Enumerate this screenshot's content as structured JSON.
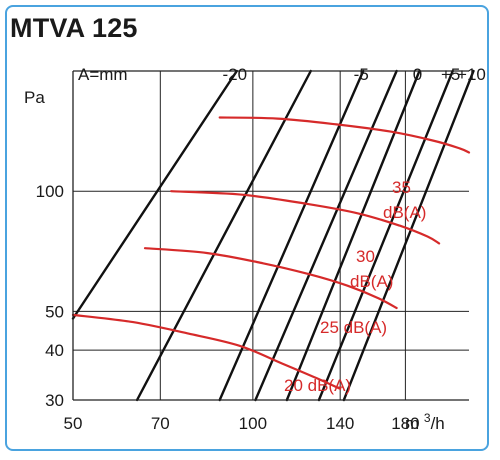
{
  "title": "MTVA 125",
  "chart_data": {
    "type": "line",
    "title": "MTVA 125",
    "xlabel": "m3/h",
    "ylabel": "Pa",
    "x_scale": "log",
    "y_scale": "log",
    "xlim": [
      50,
      230
    ],
    "ylim": [
      30,
      200
    ],
    "grid": true,
    "x_ticks": [
      {
        "label": "50",
        "value": 50
      },
      {
        "label": "70",
        "value": 70
      },
      {
        "label": "100",
        "value": 100
      },
      {
        "label": "140",
        "value": 140
      },
      {
        "label": "180",
        "value": 180
      }
    ],
    "y_ticks": [
      {
        "label": "30",
        "value": 30
      },
      {
        "label": "40",
        "value": 40
      },
      {
        "label": "50",
        "value": 50
      },
      {
        "label": "100",
        "value": 100
      }
    ],
    "damper_prefix": "A=mm",
    "damper_lines": [
      {
        "label": "-20",
        "points": [
          [
            50,
            48
          ],
          [
            94,
            200
          ]
        ]
      },
      {
        "label": "",
        "points": [
          [
            64,
            30
          ],
          [
            125,
            200
          ]
        ]
      },
      {
        "label": "-5",
        "points": [
          [
            88,
            30
          ],
          [
            153,
            200
          ]
        ]
      },
      {
        "label": "",
        "points": [
          [
            101,
            30
          ],
          [
            174,
            200
          ]
        ]
      },
      {
        "label": "0",
        "points": [
          [
            114,
            30
          ],
          [
            190,
            200
          ]
        ]
      },
      {
        "label": "+5",
        "points": [
          [
            129,
            30
          ],
          [
            216,
            200
          ]
        ]
      },
      {
        "label": "+10",
        "points": [
          [
            142,
            30
          ],
          [
            234,
            200
          ]
        ]
      }
    ],
    "sound_lines": [
      {
        "line1": "20 dB(A)",
        "line2": "",
        "points": [
          [
            50,
            49
          ],
          [
            63,
            47
          ],
          [
            78,
            44
          ],
          [
            95,
            41
          ],
          [
            112,
            37
          ],
          [
            128,
            34
          ],
          [
            140,
            32
          ]
        ]
      },
      {
        "line1": "25 dB(A)",
        "line2": "",
        "points": [
          [
            66,
            72
          ],
          [
            84,
            70
          ],
          [
            104,
            66
          ],
          [
            124,
            62
          ],
          [
            144,
            58
          ],
          [
            162,
            54
          ],
          [
            174,
            51
          ]
        ]
      },
      {
        "line1": "30",
        "line2": "dB(A)",
        "points": [
          [
            73,
            100
          ],
          [
            96,
            98
          ],
          [
            123,
            93
          ],
          [
            150,
            88
          ],
          [
            176,
            82
          ],
          [
            196,
            77
          ],
          [
            205,
            74
          ]
        ]
      },
      {
        "line1": "35",
        "line2": "dB(A)",
        "points": [
          [
            88,
            153
          ],
          [
            110,
            152
          ],
          [
            138,
            147
          ],
          [
            170,
            141
          ],
          [
            200,
            134
          ],
          [
            222,
            128
          ],
          [
            230,
            125
          ]
        ]
      }
    ]
  }
}
